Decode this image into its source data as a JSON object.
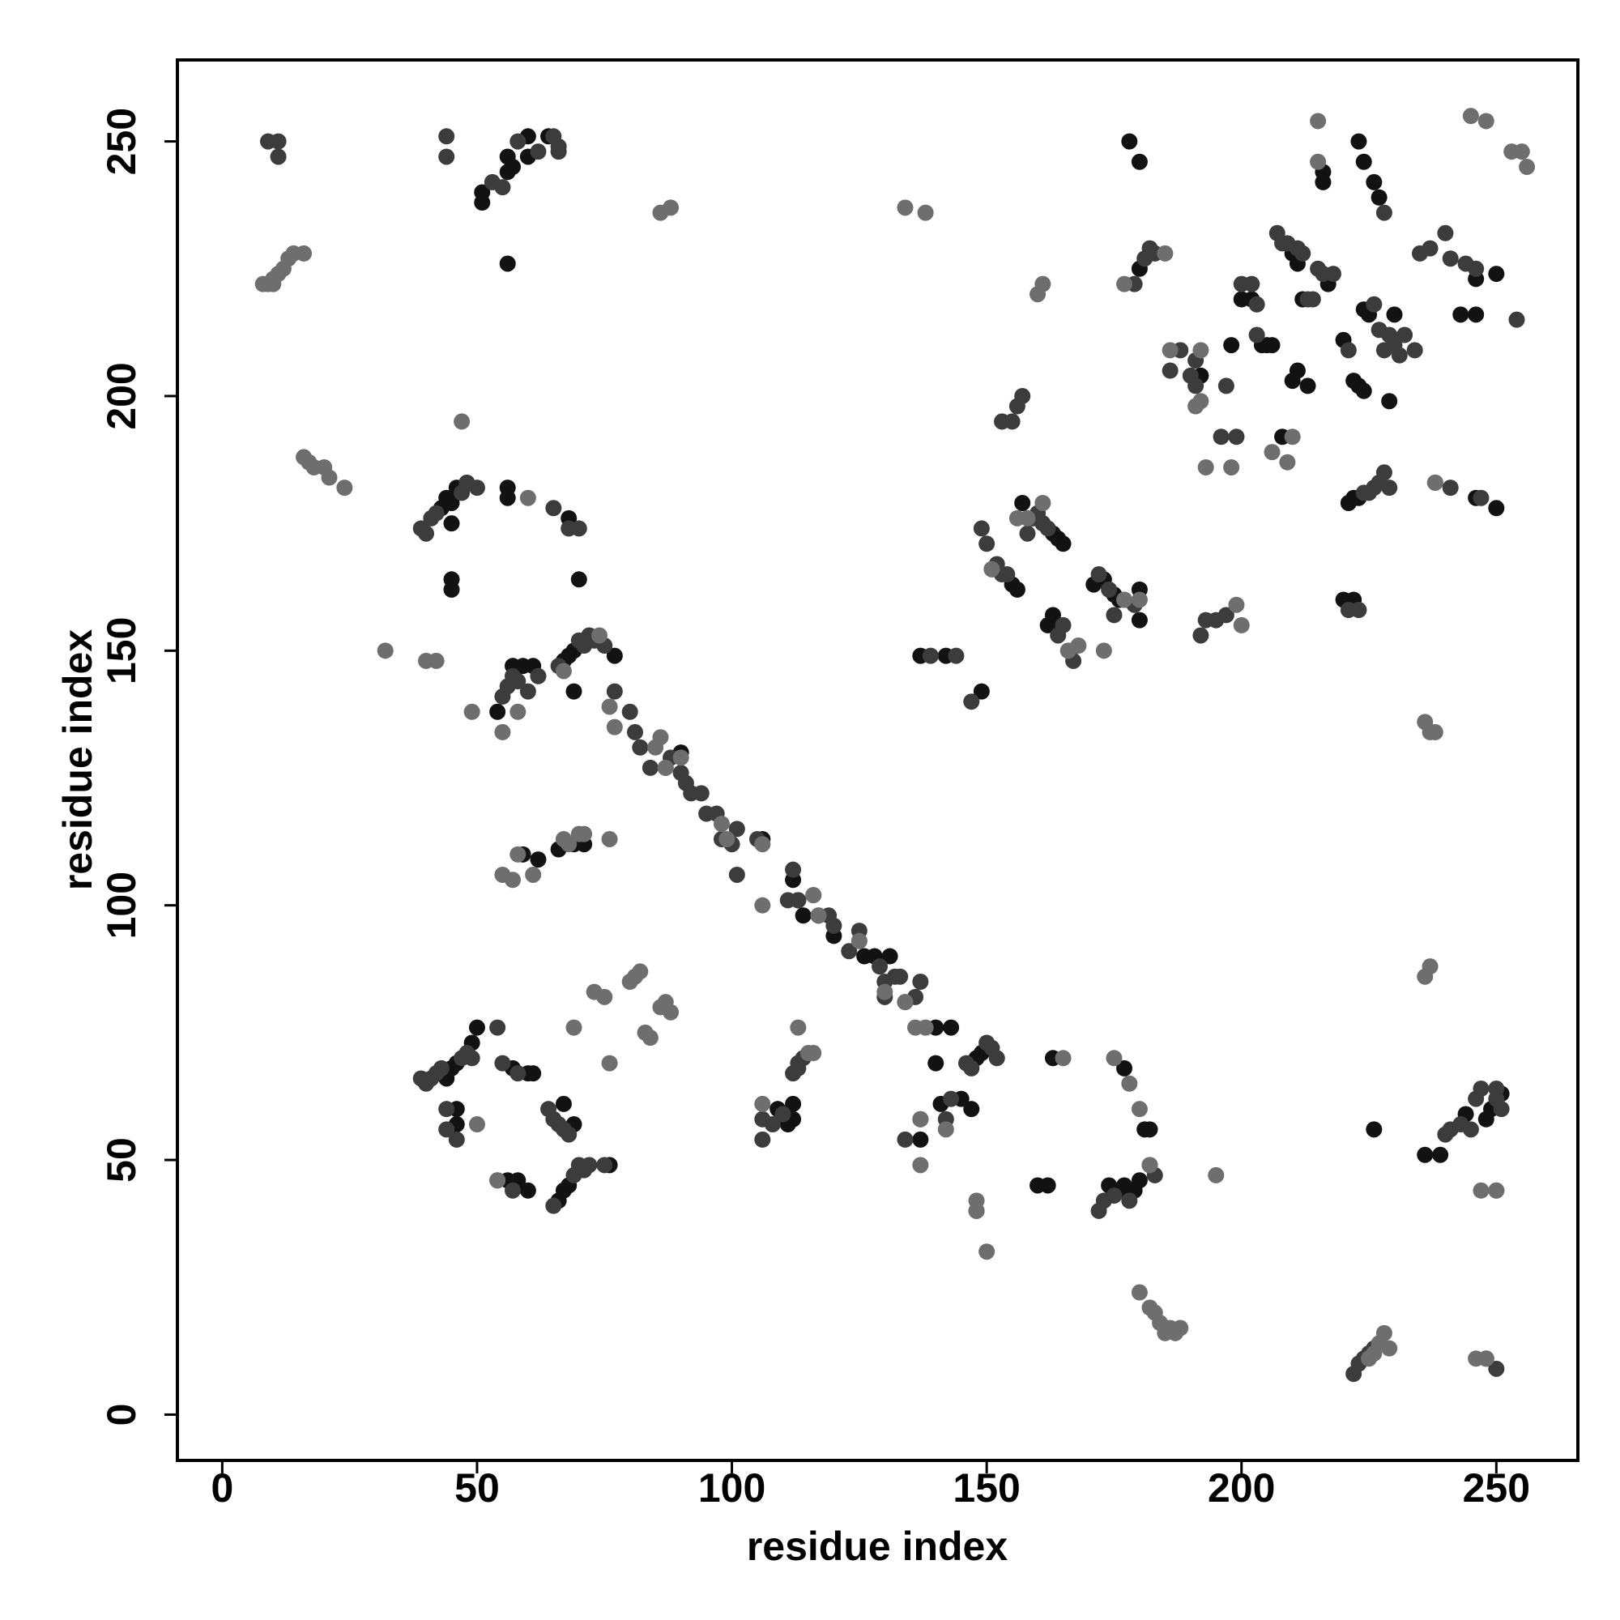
{
  "chart_data": {
    "type": "scatter",
    "xlabel": "residue index",
    "ylabel": "residue index",
    "xlim": [
      -8.8,
      266
    ],
    "ylim": [
      -9,
      266
    ],
    "xticks": [
      0,
      50,
      100,
      150,
      200,
      250
    ],
    "yticks": [
      0,
      50,
      100,
      150,
      200,
      250
    ],
    "series": [
      {
        "color": "#121212",
        "x": [
          51,
          51,
          56,
          56,
          57,
          60,
          60,
          64,
          56,
          43,
          44,
          45,
          46,
          45,
          45,
          45,
          56,
          56,
          68,
          70,
          54,
          57,
          59,
          61,
          67,
          68,
          69,
          77,
          69,
          44,
          45,
          46,
          49,
          50,
          46,
          46,
          57,
          60,
          61,
          56,
          58,
          60,
          67,
          69,
          66,
          67,
          68,
          76,
          140,
          137,
          147,
          148,
          149,
          160,
          162,
          163,
          177,
          181,
          182,
          174,
          176,
          177,
          179,
          180,
          226,
          236,
          239,
          244,
          248,
          249,
          251,
          149,
          155,
          156,
          157,
          161,
          163,
          164,
          165,
          162,
          163,
          171,
          173,
          175,
          176,
          180,
          180,
          178,
          180,
          180,
          192,
          198,
          200,
          202,
          204,
          205,
          206,
          210,
          211,
          212,
          210,
          211,
          213,
          208,
          216,
          216,
          217,
          220,
          222,
          223,
          224,
          224,
          225,
          223,
          224,
          226,
          227,
          230,
          229,
          246,
          243,
          246,
          250,
          222,
          223,
          246,
          250,
          221,
          220,
          222,
          140,
          143,
          137,
          142,
          112,
          113,
          106,
          90,
          114,
          117,
          120,
          126,
          131,
          128,
          66,
          69,
          71,
          62,
          59,
          112,
          112,
          109,
          111,
          141,
          145
        ],
        "y": [
          240,
          238,
          244,
          247,
          245,
          247,
          251,
          251,
          226,
          178,
          180,
          179,
          182,
          175,
          164,
          162,
          182,
          180,
          176,
          164,
          138,
          147,
          147,
          147,
          148,
          149,
          150,
          149,
          142,
          66,
          68,
          69,
          73,
          76,
          60,
          57,
          68,
          67,
          67,
          46,
          46,
          44,
          61,
          57,
          42,
          44,
          45,
          49,
          69,
          54,
          60,
          70,
          71,
          45,
          45,
          70,
          68,
          56,
          56,
          45,
          44,
          45,
          44,
          46,
          56,
          51,
          51,
          59,
          58,
          60,
          63,
          142,
          163,
          162,
          179,
          175,
          173,
          172,
          171,
          155,
          157,
          163,
          164,
          161,
          160,
          162,
          156,
          250,
          246,
          225,
          204,
          210,
          219,
          219,
          210,
          210,
          210,
          228,
          226,
          219,
          203,
          205,
          202,
          192,
          244,
          242,
          222,
          211,
          203,
          202,
          201,
          217,
          216,
          250,
          246,
          242,
          239,
          216,
          199,
          223,
          216,
          216,
          224,
          180,
          180,
          180,
          178,
          179,
          160,
          160,
          76,
          76,
          149,
          149,
          105,
          101,
          113,
          130,
          98,
          98,
          94,
          90,
          90,
          90,
          111,
          112,
          112,
          109,
          110,
          58,
          61,
          60,
          57,
          61,
          62
        ]
      },
      {
        "color": "#3c3c3c",
        "x": [
          9,
          11,
          11,
          44,
          44,
          53,
          55,
          58,
          62,
          65,
          66,
          66,
          39,
          40,
          41,
          42,
          47,
          48,
          50,
          65,
          68,
          70,
          55,
          56,
          57,
          58,
          60,
          62,
          66,
          70,
          71,
          72,
          73,
          75,
          77,
          80,
          81,
          82,
          84,
          87,
          88,
          90,
          91,
          92,
          94,
          95,
          97,
          98,
          100,
          101,
          101,
          105,
          111,
          112,
          113,
          116,
          119,
          120,
          123,
          125,
          125,
          129,
          130,
          130,
          132,
          133,
          134,
          136,
          137,
          39,
          40,
          41,
          42,
          43,
          47,
          48,
          49,
          44,
          44,
          46,
          54,
          55,
          58,
          64,
          65,
          66,
          67,
          68,
          54,
          57,
          65,
          69,
          70,
          71,
          72,
          75,
          106,
          106,
          108,
          110,
          112,
          113,
          113,
          114,
          134,
          137,
          142,
          143,
          146,
          147,
          150,
          151,
          152,
          148,
          172,
          173,
          175,
          178,
          182,
          183,
          222,
          223,
          224,
          225,
          226,
          240,
          241,
          243,
          245,
          246,
          247,
          250,
          251,
          250,
          248,
          250,
          139,
          144,
          147,
          149,
          150,
          151,
          152,
          153,
          154,
          158,
          159,
          160,
          161,
          162,
          164,
          165,
          166,
          167,
          172,
          174,
          175,
          177,
          179,
          153,
          155,
          156,
          157,
          179,
          181,
          182,
          183,
          192,
          193,
          195,
          197,
          186,
          188,
          190,
          191,
          191,
          196,
          197,
          199,
          200,
          202,
          203,
          203,
          207,
          208,
          209,
          211,
          212,
          213,
          214,
          215,
          216,
          218,
          221,
          226,
          227,
          228,
          228,
          229,
          230,
          231,
          232,
          234,
          235,
          237,
          240,
          241,
          244,
          246,
          254,
          224,
          225,
          226,
          227,
          228,
          229,
          238,
          241,
          247,
          221,
          223
        ],
        "y": [
          250,
          250,
          247,
          251,
          247,
          242,
          241,
          250,
          248,
          251,
          249,
          248,
          174,
          173,
          176,
          177,
          181,
          183,
          182,
          178,
          174,
          174,
          141,
          143,
          145,
          144,
          142,
          145,
          147,
          152,
          151,
          153,
          152,
          151,
          142,
          138,
          134,
          131,
          127,
          127,
          129,
          126,
          124,
          122,
          122,
          118,
          118,
          113,
          112,
          115,
          106,
          113,
          101,
          107,
          101,
          102,
          98,
          96,
          91,
          93,
          95,
          88,
          85,
          82,
          86,
          86,
          81,
          82,
          85,
          66,
          65,
          66,
          67,
          68,
          70,
          71,
          70,
          60,
          56,
          54,
          76,
          69,
          67,
          60,
          58,
          57,
          56,
          55,
          46,
          44,
          41,
          47,
          49,
          48,
          49,
          49,
          58,
          54,
          57,
          59,
          67,
          68,
          69,
          70,
          54,
          58,
          58,
          62,
          69,
          68,
          73,
          72,
          70,
          40,
          40,
          42,
          43,
          42,
          49,
          47,
          8,
          10,
          11,
          12,
          13,
          55,
          56,
          57,
          56,
          62,
          64,
          62,
          60,
          64,
          11,
          9,
          149,
          149,
          140,
          174,
          171,
          166,
          167,
          165,
          165,
          173,
          176,
          177,
          175,
          174,
          153,
          155,
          150,
          148,
          165,
          162,
          157,
          160,
          159,
          195,
          195,
          198,
          200,
          222,
          227,
          229,
          228,
          153,
          156,
          156,
          157,
          205,
          209,
          204,
          202,
          207,
          192,
          202,
          192,
          222,
          222,
          218,
          212,
          232,
          230,
          230,
          229,
          228,
          219,
          219,
          225,
          224,
          224,
          209,
          218,
          213,
          209,
          236,
          212,
          210,
          208,
          212,
          209,
          228,
          229,
          232,
          227,
          226,
          225,
          215,
          181,
          181,
          182,
          183,
          185,
          182,
          183,
          182,
          180,
          158,
          158
        ]
      },
      {
        "color": "#6e6e6e",
        "x": [
          8,
          9,
          10,
          10,
          11,
          12,
          13,
          14,
          16,
          86,
          88,
          134,
          138,
          16,
          17,
          18,
          20,
          21,
          24,
          47,
          60,
          32,
          40,
          42,
          49,
          55,
          58,
          67,
          74,
          77,
          76,
          85,
          86,
          87,
          90,
          98,
          99,
          106,
          106,
          116,
          117,
          125,
          130,
          134,
          136,
          138,
          55,
          57,
          58,
          61,
          67,
          68,
          70,
          71,
          76,
          50,
          54,
          73,
          75,
          80,
          81,
          82,
          83,
          84,
          86,
          87,
          88,
          76,
          69,
          115,
          116,
          113,
          106,
          137,
          137,
          142,
          148,
          148,
          150,
          165,
          175,
          178,
          180,
          182,
          195,
          180,
          182,
          183,
          184,
          185,
          186,
          187,
          188,
          225,
          226,
          227,
          228,
          229,
          236,
          237,
          236,
          237,
          238,
          246,
          248,
          250,
          247,
          250,
          151,
          156,
          158,
          161,
          166,
          168,
          173,
          177,
          180,
          160,
          161,
          177,
          185,
          199,
          200,
          186,
          192,
          191,
          192,
          193,
          198,
          206,
          209,
          210,
          215,
          215,
          245,
          248,
          253,
          256,
          255,
          238
        ],
        "y": [
          222,
          222,
          222,
          223,
          224,
          225,
          227,
          228,
          228,
          236,
          237,
          237,
          236,
          188,
          187,
          186,
          186,
          184,
          182,
          195,
          180,
          150,
          148,
          148,
          138,
          134,
          138,
          146,
          153,
          135,
          139,
          131,
          133,
          127,
          129,
          116,
          113,
          112,
          100,
          102,
          98,
          93,
          83,
          81,
          76,
          76,
          106,
          105,
          110,
          106,
          113,
          112,
          114,
          114,
          113,
          57,
          46,
          83,
          82,
          85,
          86,
          87,
          75,
          74,
          80,
          81,
          79,
          69,
          76,
          71,
          71,
          76,
          61,
          49,
          58,
          56,
          42,
          40,
          32,
          70,
          70,
          65,
          60,
          49,
          47,
          24,
          21,
          20,
          18,
          16,
          17,
          16,
          17,
          11,
          12,
          14,
          16,
          13,
          86,
          88,
          136,
          134,
          134,
          11,
          11,
          44,
          44,
          44,
          166,
          176,
          176,
          179,
          150,
          151,
          150,
          160,
          160,
          220,
          222,
          222,
          228,
          159,
          155,
          209,
          209,
          198,
          199,
          186,
          186,
          189,
          187,
          192,
          254,
          246,
          255,
          254,
          248,
          245,
          248,
          183
        ]
      }
    ]
  }
}
